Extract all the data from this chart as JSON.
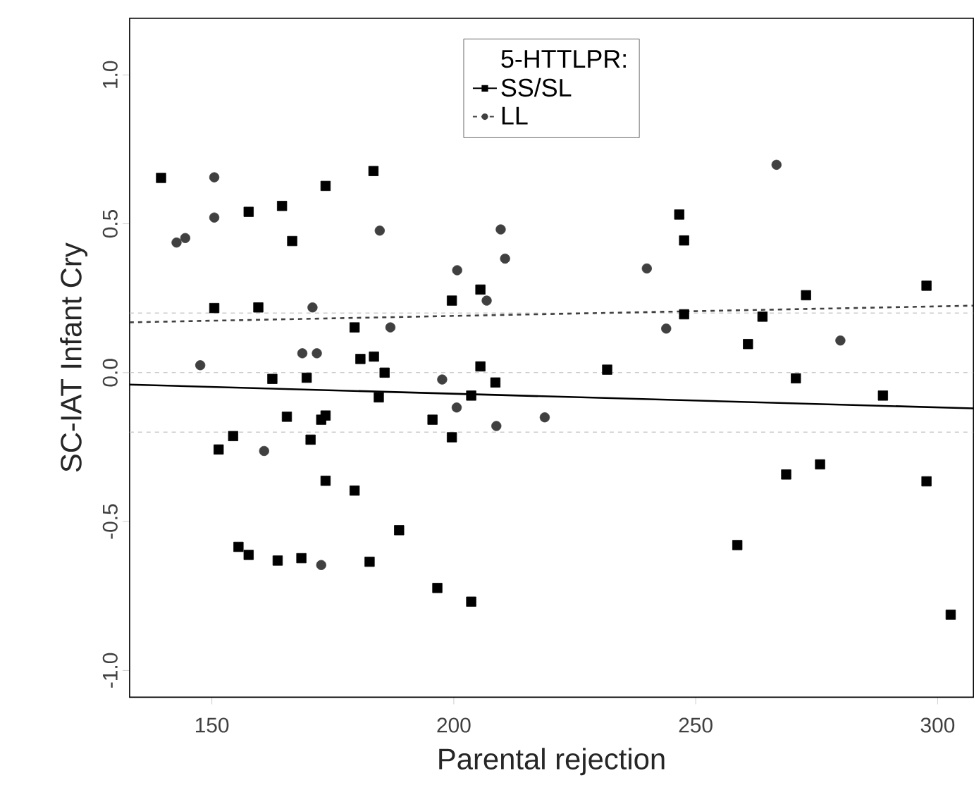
{
  "chart_data": {
    "type": "scatter",
    "xlabel": "Parental rejection",
    "ylabel": "SC-IAT Infant Cry",
    "legend_title": "5-HTTLPR:",
    "legend": "top",
    "xlim": [
      133,
      307.4
    ],
    "ylim": [
      -1.09,
      1.19
    ],
    "xticks": [
      150,
      200,
      250,
      300
    ],
    "yticks": [
      {
        "value": -1,
        "label": "-1.0"
      },
      {
        "value": -0.5,
        "label": "-0.5"
      },
      {
        "value": 0,
        "label": "0.0"
      },
      {
        "value": 0.5,
        "label": "0.5"
      },
      {
        "value": 1,
        "label": "1.0"
      }
    ],
    "grid": false,
    "ref_lines": [
      {
        "axis": "y",
        "value": 0.2,
        "color": "#cccccc",
        "line_style": "dashed"
      },
      {
        "axis": "y",
        "value": 0,
        "color": "#cccccc",
        "line_style": "dashed"
      },
      {
        "axis": "y",
        "value": -0.2,
        "color": "#cccccc",
        "line_style": "dashed"
      }
    ],
    "series": [
      {
        "name": "SS/SL",
        "type": "scatter",
        "marker": "square",
        "color": "#000000",
        "x": [
          139.5,
          150.5,
          151.4,
          154.4,
          155.5,
          157.6,
          157.6,
          159.6,
          162.5,
          163.6,
          164.5,
          165.5,
          166.6,
          168.5,
          169.6,
          170.4,
          172.6,
          173.5,
          173.5,
          173.5,
          179.5,
          179.5,
          180.7,
          182.6,
          183.4,
          183.5,
          184.5,
          185.7,
          188.7,
          195.6,
          196.6,
          199.6,
          199.6,
          203.6,
          203.6,
          205.5,
          205.5,
          208.6,
          231.7,
          246.6,
          247.6,
          247.6,
          258.6,
          260.8,
          263.8,
          268.7,
          270.7,
          272.8,
          275.7,
          288.7,
          297.7,
          297.7,
          302.7
        ],
        "values": [
          0.654,
          0.217,
          -0.258,
          -0.213,
          -0.585,
          0.54,
          -0.612,
          0.219,
          -0.021,
          -0.631,
          0.56,
          -0.148,
          0.442,
          -0.623,
          -0.017,
          -0.225,
          -0.158,
          0.627,
          -0.144,
          -0.363,
          0.152,
          -0.396,
          0.046,
          -0.635,
          0.677,
          0.054,
          -0.083,
          0.0,
          -0.529,
          -0.158,
          -0.723,
          0.242,
          -0.217,
          -0.077,
          -0.769,
          0.279,
          0.021,
          -0.033,
          0.01,
          0.531,
          0.444,
          0.196,
          -0.579,
          0.096,
          0.188,
          -0.342,
          -0.019,
          0.26,
          -0.308,
          -0.077,
          0.292,
          -0.365,
          -0.813
        ]
      },
      {
        "name": "LL",
        "type": "scatter",
        "marker": "circle",
        "color": "#404040",
        "x": [
          142.7,
          144.5,
          147.6,
          150.5,
          150.5,
          160.8,
          168.7,
          170.8,
          171.7,
          172.6,
          184.7,
          186.9,
          197.6,
          200.6,
          200.7,
          206.8,
          208.8,
          209.7,
          210.6,
          218.8,
          239.9,
          243.9,
          266.7,
          279.9
        ],
        "values": [
          0.437,
          0.452,
          0.025,
          0.656,
          0.521,
          -0.263,
          0.065,
          0.219,
          0.065,
          -0.646,
          0.477,
          0.152,
          -0.023,
          -0.117,
          0.344,
          0.242,
          -0.179,
          0.481,
          0.383,
          -0.15,
          0.35,
          0.148,
          0.698,
          0.108
        ]
      },
      {
        "type": "line",
        "line_style": "solid",
        "color": "#000000",
        "x": [
          133,
          307.4
        ],
        "values": [
          -0.04,
          -0.12
        ]
      },
      {
        "type": "line",
        "line_style": "dashed",
        "color": "#404040",
        "x": [
          133,
          307.4
        ],
        "values": [
          0.169,
          0.225
        ]
      }
    ]
  }
}
